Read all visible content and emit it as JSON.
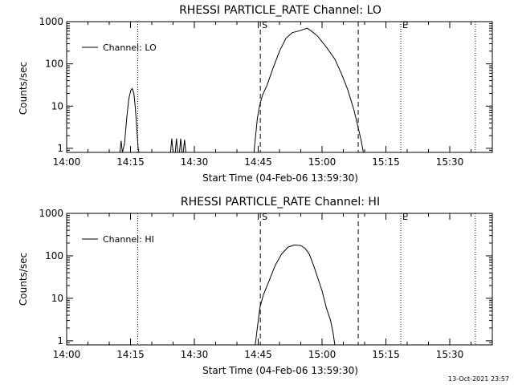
{
  "footer": {
    "timestamp": "13-Oct-2021 23:57"
  },
  "chart_data": [
    {
      "type": "line",
      "title": "RHESSI PARTICLE_RATE Channel: LO",
      "xlabel": "Start Time (04-Feb-06 13:59:30)",
      "ylabel": "Counts/sec",
      "yscale": "log",
      "xlim": [
        "14:00",
        "15:40"
      ],
      "ylim": [
        0.8,
        1000
      ],
      "x_tick_labels": [
        "14:00",
        "14:15",
        "14:30",
        "14:45",
        "15:00",
        "15:15",
        "15:30"
      ],
      "y_tick_labels": [
        "1",
        "10",
        "100",
        "1000"
      ],
      "legend": {
        "position": "top-left",
        "entries": [
          "Channel: LO"
        ]
      },
      "markers": [
        {
          "time": "14:16.7",
          "style": "dotted",
          "label": ""
        },
        {
          "time": "14:45.5",
          "style": "dashed",
          "label": "S"
        },
        {
          "time": "15:08.5",
          "style": "dashed",
          "label": ""
        },
        {
          "time": "15:18.5",
          "style": "dotted",
          "label": "E"
        },
        {
          "time": "15:36.0",
          "style": "dotted",
          "label": ""
        }
      ],
      "series": [
        {
          "name": "Channel: LO",
          "points": [
            [
              "14:12.5",
              0.8
            ],
            [
              "14:12.8",
              1.5
            ],
            [
              "14:13.1",
              0.8
            ],
            [
              "14:13.6",
              1.3
            ],
            [
              "14:14.1",
              5
            ],
            [
              "14:14.6",
              15
            ],
            [
              "14:15.1",
              24
            ],
            [
              "14:15.4",
              26
            ],
            [
              "14:15.8",
              20
            ],
            [
              "14:16.1",
              10
            ],
            [
              "14:16.5",
              3
            ],
            [
              "14:16.8",
              1
            ],
            [
              "14:17.0",
              0.8
            ],
            [
              "14:24.4",
              0.8
            ],
            [
              "14:24.7",
              1.7
            ],
            [
              "14:25.0",
              0.8
            ],
            [
              "14:25.5",
              0.8
            ],
            [
              "14:25.8",
              1.7
            ],
            [
              "14:26.1",
              0.8
            ],
            [
              "14:26.5",
              0.8
            ],
            [
              "14:26.8",
              1.7
            ],
            [
              "14:27.1",
              0.8
            ],
            [
              "14:27.4",
              0.8
            ],
            [
              "14:27.7",
              1.6
            ],
            [
              "14:28.0",
              0.8
            ],
            [
              "14:44.0",
              0.8
            ],
            [
              "14:44.4",
              2
            ],
            [
              "14:44.8",
              5
            ],
            [
              "14:45.3",
              10
            ],
            [
              "14:46.0",
              18
            ],
            [
              "14:47.0",
              30
            ],
            [
              "14:48.5",
              80
            ],
            [
              "14:50.0",
              200
            ],
            [
              "14:51.5",
              400
            ],
            [
              "14:53.0",
              550
            ],
            [
              "14:54.5",
              600
            ],
            [
              "14:55.5",
              650
            ],
            [
              "14:56.5",
              700
            ],
            [
              "14:57.5",
              600
            ],
            [
              "14:59.0",
              450
            ],
            [
              "15:01.0",
              250
            ],
            [
              "15:03.0",
              130
            ],
            [
              "15:04.5",
              60
            ],
            [
              "15:06.0",
              25
            ],
            [
              "15:07.5",
              8
            ],
            [
              "15:08.5",
              3
            ],
            [
              "15:09.2",
              1.5
            ],
            [
              "15:09.7",
              0.8
            ]
          ]
        }
      ]
    },
    {
      "type": "line",
      "title": "RHESSI PARTICLE_RATE Channel: HI",
      "xlabel": "Start Time (04-Feb-06 13:59:30)",
      "ylabel": "Counts/sec",
      "yscale": "log",
      "xlim": [
        "14:00",
        "15:40"
      ],
      "ylim": [
        0.8,
        1000
      ],
      "x_tick_labels": [
        "14:00",
        "14:15",
        "14:30",
        "14:45",
        "15:00",
        "15:15",
        "15:30"
      ],
      "y_tick_labels": [
        "1",
        "10",
        "100",
        "1000"
      ],
      "legend": {
        "position": "top-left",
        "entries": [
          "Channel: HI"
        ]
      },
      "markers": [
        {
          "time": "14:16.7",
          "style": "dotted",
          "label": ""
        },
        {
          "time": "14:45.5",
          "style": "dashed",
          "label": "S"
        },
        {
          "time": "15:08.5",
          "style": "dashed",
          "label": ""
        },
        {
          "time": "15:18.5",
          "style": "dotted",
          "label": "E"
        },
        {
          "time": "15:36.0",
          "style": "dotted",
          "label": ""
        }
      ],
      "series": [
        {
          "name": "Channel: HI",
          "points": [
            [
              "14:44.3",
              0.8
            ],
            [
              "14:44.8",
              2
            ],
            [
              "14:45.4",
              6
            ],
            [
              "14:46.2",
              12
            ],
            [
              "14:47.5",
              25
            ],
            [
              "14:49.0",
              60
            ],
            [
              "14:50.5",
              110
            ],
            [
              "14:52.0",
              160
            ],
            [
              "14:53.5",
              180
            ],
            [
              "14:55.0",
              175
            ],
            [
              "14:56.0",
              150
            ],
            [
              "14:57.0",
              110
            ],
            [
              "14:58.0",
              60
            ],
            [
              "14:59.0",
              30
            ],
            [
              "15:00.0",
              15
            ],
            [
              "15:01.0",
              6
            ],
            [
              "15:02.0",
              3
            ],
            [
              "15:02.6",
              1.5
            ],
            [
              "15:03.0",
              0.8
            ]
          ]
        }
      ]
    }
  ]
}
